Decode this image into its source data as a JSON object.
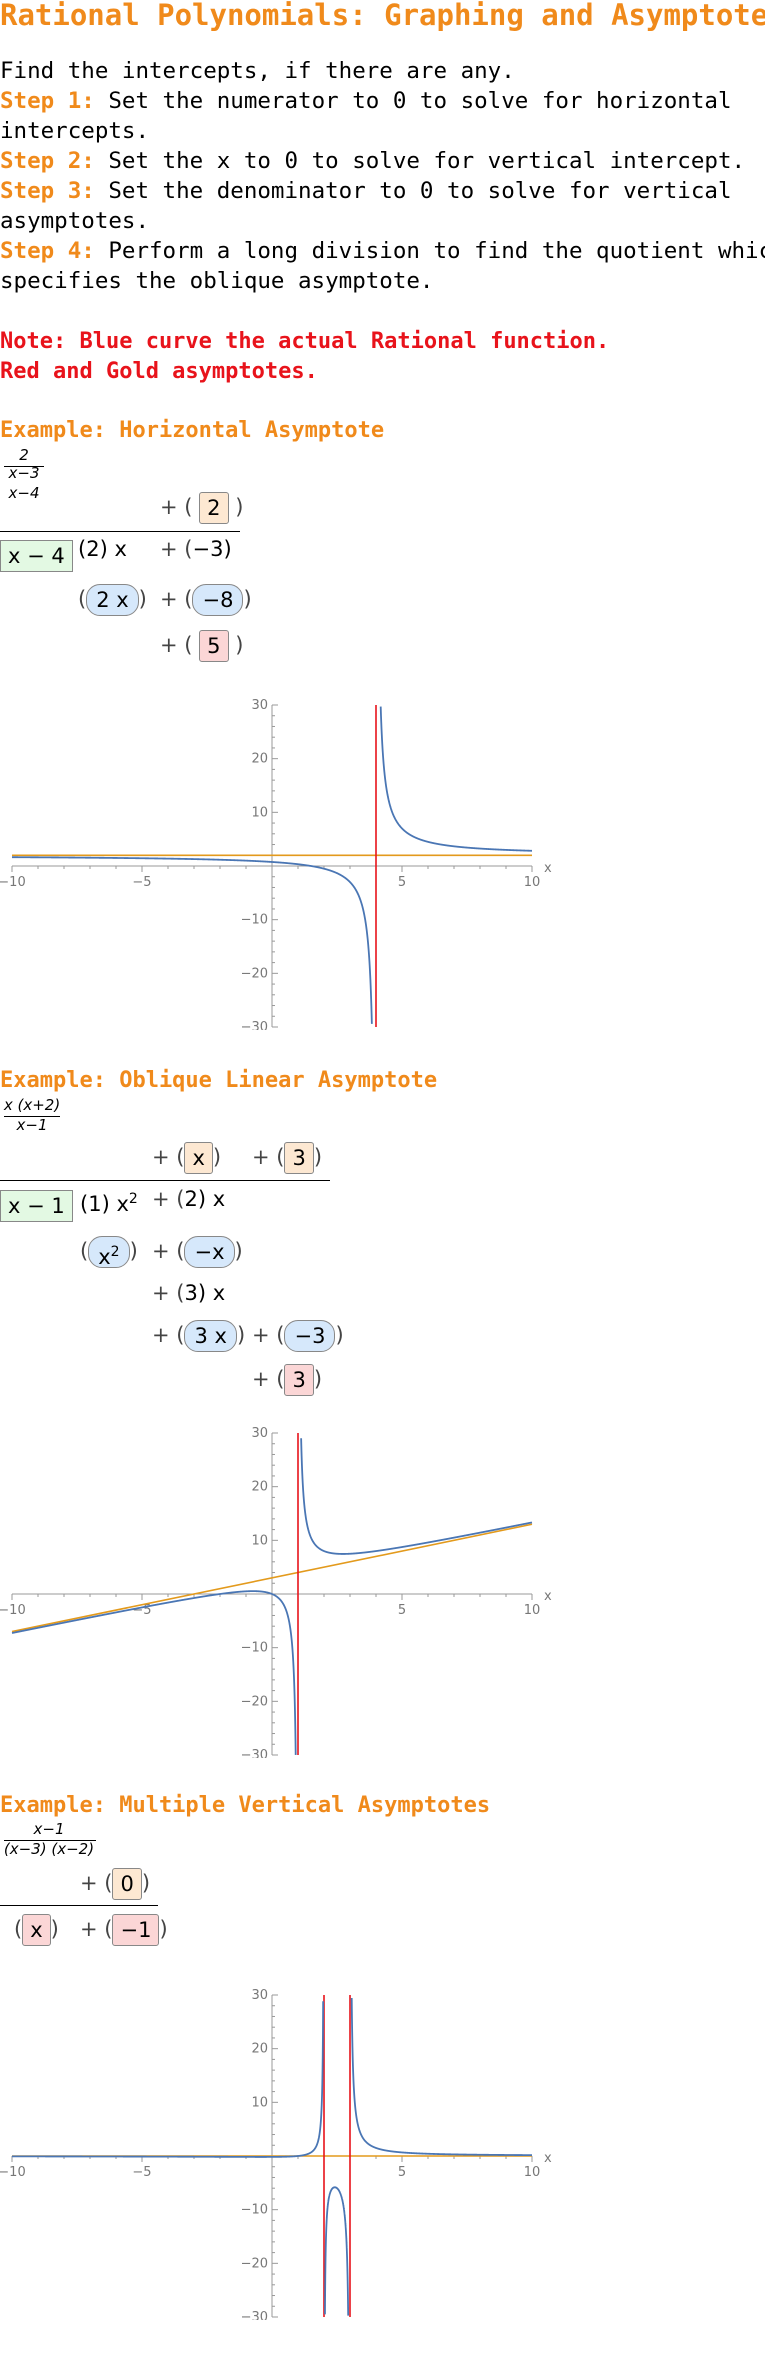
{
  "title": "Rational Polynomials: Graphing and Asymptotes",
  "intro": {
    "line1": "Find the intercepts, if there are any.",
    "steps": [
      {
        "label": "Step 1:",
        "text1": " Set the numerator to 0 to solve for horizontal",
        "text2": "intercepts."
      },
      {
        "label": "Step 2:",
        "text1": " Set the x to 0 to solve for vertical intercept.",
        "text2": ""
      },
      {
        "label": "Step 3:",
        "text1": " Set the denominator to 0 to solve for vertical",
        "text2": "asymptotes."
      },
      {
        "label": "Step 4:",
        "text1": " Perform a long division to find the quotient which",
        "text2": "specifies the oblique asymptote."
      }
    ]
  },
  "note": {
    "line1": "Note: Blue curve the actual Rational function.",
    "line2": "Red and Gold asymptotes."
  },
  "colors": {
    "accent": "#f08a1b",
    "note_red": "#e8131b",
    "curve_blue": "#4a76b4",
    "asymptote_red": "#e8131b",
    "asymptote_gold": "#e39a1c"
  },
  "examples": [
    {
      "heading": "Example: Horizontal Asymptote",
      "fraction": {
        "num": "2 x−3",
        "den": "x−4"
      },
      "division": {
        "quotient": [
          "2"
        ],
        "divisor": "x − 4",
        "dividend": [
          "2",
          "x",
          "−3"
        ],
        "row2": [
          "2 x",
          "−8"
        ],
        "remainder": "5"
      },
      "plot": {
        "x_ticks": [
          "−10",
          "−5",
          "5",
          "10"
        ],
        "y_ticks": [
          "30",
          "20",
          "10",
          "−10",
          "−20",
          "−30"
        ],
        "axis_label": "x"
      }
    },
    {
      "heading": "Example: Oblique Linear Asymptote",
      "fraction": {
        "num": "x (x+2)",
        "den": "x−1"
      },
      "division": {
        "quotient": [
          "x",
          "3"
        ],
        "divisor": "x − 1",
        "dividend": [
          "1",
          "x",
          "2",
          "2",
          "x"
        ],
        "row2": [
          "x",
          "2",
          "−x"
        ],
        "row3": [
          "3",
          "x"
        ],
        "row4": [
          "3 x",
          "−3"
        ],
        "remainder": "3"
      },
      "plot": {
        "x_ticks": [
          "−10",
          "−5",
          "5",
          "10"
        ],
        "y_ticks": [
          "30",
          "20",
          "10",
          "−10",
          "−20",
          "−30"
        ],
        "axis_label": "x"
      }
    },
    {
      "heading": "Example: Multiple Vertical Asymptotes",
      "fraction": {
        "num": "x−1",
        "den": "(x−3) (x−2)"
      },
      "division": {
        "quotient": [
          "0"
        ],
        "row1": [
          "x",
          "−1"
        ]
      },
      "plot": {
        "x_ticks": [
          "−10",
          "−5",
          "5",
          "10"
        ],
        "y_ticks": [
          "30",
          "20",
          "10",
          "−10",
          "−20",
          "−30"
        ],
        "axis_label": "x"
      }
    }
  ]
}
